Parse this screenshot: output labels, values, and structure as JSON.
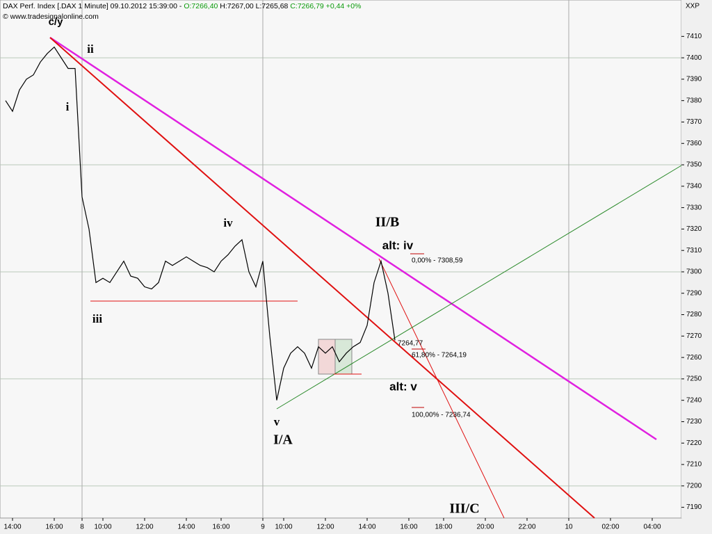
{
  "chart_data": {
    "type": "line",
    "header": {
      "title": "DAX Perf. Index [.DAX 1 Minute] 09.10.2012 15:39:00 -",
      "open": "O:7266,40",
      "high_low": "H:7267,00 L:7265,68",
      "close": "C:7266,79 +0,44 +0%"
    },
    "copyright": "© www.tradesignalonline.com",
    "symbol": "XXP",
    "categories": [
      null,
      "14:00",
      null,
      null,
      null,
      null,
      null,
      "16:00",
      null,
      null,
      null,
      "8",
      null,
      null,
      "10:00",
      null,
      null,
      null,
      null,
      null,
      "12:00",
      null,
      null,
      null,
      null,
      null,
      "14:00",
      null,
      null,
      null,
      null,
      "16:00",
      null,
      null,
      null,
      null,
      null,
      "9",
      null,
      null,
      "10:00",
      null,
      null,
      null,
      null,
      null,
      "12:00",
      null,
      null,
      null,
      null,
      null,
      "14:00",
      null,
      null,
      null,
      null,
      null,
      "16:00",
      null,
      null,
      null,
      null,
      "18:00",
      null,
      null,
      null,
      null,
      null,
      "20:00",
      null,
      null,
      null,
      null,
      null,
      "22:00",
      null,
      null,
      null,
      null,
      null,
      "10",
      null,
      null,
      null,
      null,
      null,
      "02:00",
      null,
      null,
      null,
      null,
      null,
      "04:00",
      null,
      null,
      null,
      null
    ],
    "series": [
      {
        "color": "#000000",
        "values": [
          7380,
          7375,
          7385,
          7390,
          7392,
          7398,
          7402,
          7405,
          7400,
          7395,
          7395,
          7335,
          7320,
          7295,
          7297,
          7295,
          7300,
          7305,
          7298,
          7297,
          7293,
          7292,
          7295,
          7305,
          7303,
          7305,
          7307,
          7305,
          7303,
          7302,
          7300,
          7305,
          7308,
          7312,
          7315,
          7300,
          7293,
          7305,
          7270,
          7240,
          7255,
          7262,
          7265,
          7262,
          7255,
          7265,
          7262,
          7265,
          7258,
          7262,
          7265,
          7267,
          7275,
          7295,
          7305,
          7290,
          7268,
          null,
          null,
          null,
          null,
          null,
          null,
          null,
          null,
          null,
          null,
          null,
          null,
          null,
          null,
          null,
          null,
          null,
          null,
          null,
          null,
          null,
          null,
          null,
          null,
          null,
          null,
          null,
          null,
          null,
          null,
          null,
          null,
          null,
          null,
          null,
          null,
          null,
          null,
          null,
          null,
          null
        ]
      }
    ],
    "ylim": [
      7185,
      7427
    ],
    "yticks": [
      7190,
      7200,
      7210,
      7220,
      7230,
      7240,
      7250,
      7260,
      7270,
      7280,
      7290,
      7300,
      7310,
      7320,
      7330,
      7340,
      7350,
      7360,
      7370,
      7380,
      7390,
      7400,
      7410
    ],
    "annotations": [
      {
        "text": "c/y",
        "color": "#d020d0"
      },
      {
        "text": "ii",
        "color": "#e00000"
      },
      {
        "text": "i",
        "color": "#e00000"
      },
      {
        "text": "iii",
        "color": "#e00000"
      },
      {
        "text": "iv",
        "color": "#e00000"
      },
      {
        "text": "v",
        "color": "#e00000"
      },
      {
        "text": "I/A",
        "color": "#e00000"
      },
      {
        "text": "II/B",
        "color": "#e00000"
      },
      {
        "text": "alt: iv",
        "color": "#d020d0"
      },
      {
        "text": "alt: v",
        "color": "#d020d0"
      },
      {
        "text": "III/C",
        "color": "#e00000"
      },
      {
        "text": "0,00% - 7308,59",
        "color": "#c00000"
      },
      {
        "text": "7264,77",
        "color": "#c00000"
      },
      {
        "text": "61,80% - 7264,19",
        "color": "#c00000"
      },
      {
        "text": "100,00% - 7236,74",
        "color": "#c00000"
      }
    ]
  }
}
